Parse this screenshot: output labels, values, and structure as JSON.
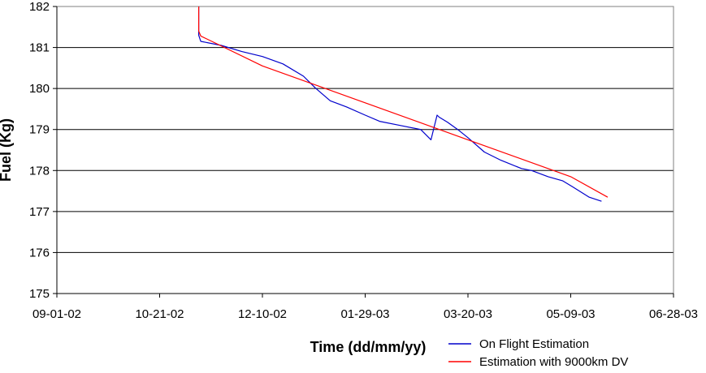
{
  "chart_data": {
    "type": "line",
    "xlabel": "Time (dd/mm/yy)",
    "ylabel": "Fuel (Kg)",
    "xlim": [
      "2002-09-01",
      "2003-06-28"
    ],
    "ylim": [
      175,
      182
    ],
    "x_ticks": [
      "09-01-02",
      "10-21-02",
      "12-10-02",
      "01-29-03",
      "03-20-03",
      "05-09-03",
      "06-28-03"
    ],
    "y_ticks": [
      175,
      176,
      177,
      178,
      179,
      180,
      181,
      182
    ],
    "grid": "horizontal",
    "legend_position": "bottom-right",
    "series": [
      {
        "name": "On Flight Estimation",
        "color": "#0000cc",
        "x": [
          "2002-11-09",
          "2002-11-09",
          "2002-11-10",
          "2002-11-20",
          "2002-11-30",
          "2002-12-10",
          "2002-12-20",
          "2002-12-30",
          "2003-01-05",
          "2003-01-12",
          "2003-01-20",
          "2003-01-29",
          "2003-02-05",
          "2003-02-15",
          "2003-02-25",
          "2003-03-02",
          "2003-03-05",
          "2003-03-06",
          "2003-03-10",
          "2003-03-15",
          "2003-03-20",
          "2003-03-28",
          "2003-04-05",
          "2003-04-15",
          "2003-04-20",
          "2003-04-28",
          "2003-05-05",
          "2003-05-10",
          "2003-05-18",
          "2003-05-24"
        ],
        "y": [
          182.0,
          181.3,
          181.15,
          181.05,
          180.9,
          180.78,
          180.6,
          180.3,
          180.0,
          179.7,
          179.55,
          179.35,
          179.2,
          179.1,
          179.0,
          178.75,
          179.35,
          179.3,
          179.18,
          179.0,
          178.8,
          178.45,
          178.25,
          178.05,
          178.0,
          177.85,
          177.75,
          177.6,
          177.35,
          177.25
        ]
      },
      {
        "name": "Estimation with 9000km DV",
        "color": "#ff0000",
        "x": [
          "2002-11-09",
          "2002-11-09",
          "2002-11-10",
          "2002-12-10",
          "2003-01-29",
          "2003-03-20",
          "2003-05-09",
          "2003-05-27"
        ],
        "y": [
          182.0,
          181.4,
          181.28,
          180.55,
          179.65,
          178.75,
          177.85,
          177.35
        ]
      }
    ]
  }
}
